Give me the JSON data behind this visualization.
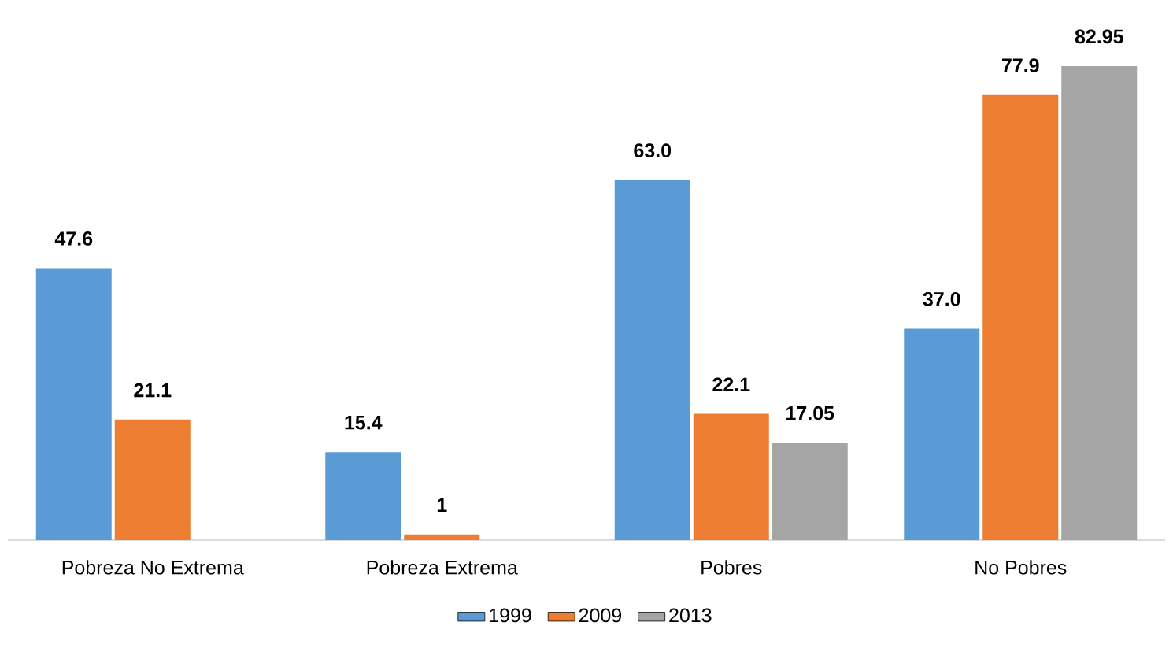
{
  "chart_data": {
    "type": "bar",
    "categories": [
      "Pobreza No Extrema",
      "Pobreza Extrema",
      "Pobres",
      "No Pobres"
    ],
    "series": [
      {
        "name": "1999",
        "color": "#5b9bd5",
        "values": [
          47.6,
          15.4,
          63.0,
          37.0
        ],
        "value_labels": [
          "47.6",
          "15.4",
          "63.0",
          "37.0"
        ]
      },
      {
        "name": "2009",
        "color": "#ed7d31",
        "values": [
          21.1,
          1,
          22.1,
          77.9
        ],
        "value_labels": [
          "21.1",
          "1",
          "22.1",
          "77.9"
        ]
      },
      {
        "name": "2013",
        "color": "#a5a5a5",
        "values": [
          null,
          null,
          17.05,
          82.95
        ],
        "value_labels": [
          null,
          null,
          "17.05",
          "82.95"
        ]
      }
    ],
    "legend": "bottom"
  }
}
